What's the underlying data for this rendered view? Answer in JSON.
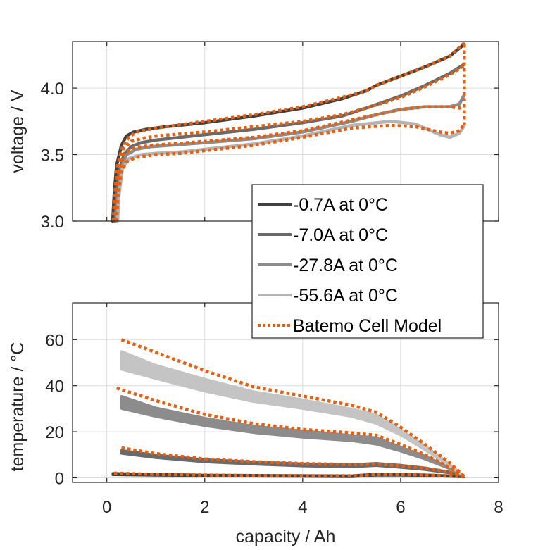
{
  "chart_data": [
    {
      "type": "line",
      "panel": "top",
      "title": "",
      "xlabel": "",
      "ylabel": "voltage / V",
      "xlim": [
        -0.7,
        8.0
      ],
      "ylim": [
        3.0,
        4.35
      ],
      "xticks": [
        0,
        2,
        4,
        6,
        8
      ],
      "xtick_labels_shown": false,
      "yticks": [
        3.0,
        3.5,
        4.0
      ],
      "ytick_labels": [
        "3.0",
        "3.5",
        "4.0"
      ],
      "grid": true,
      "series": [
        {
          "name": "-0.7A at 0°C",
          "kind": "measurement",
          "color": "#404040",
          "x": [
            0.12,
            0.15,
            0.2,
            0.3,
            0.4,
            0.55,
            0.8,
            1.2,
            2.0,
            3.0,
            4.0,
            4.8,
            5.3,
            5.5,
            6.0,
            6.5,
            7.0,
            7.3
          ],
          "y": [
            3.0,
            3.2,
            3.42,
            3.57,
            3.64,
            3.67,
            3.69,
            3.71,
            3.74,
            3.79,
            3.85,
            3.92,
            3.98,
            4.02,
            4.09,
            4.16,
            4.24,
            4.33
          ]
        },
        {
          "name": "-7.0A at 0°C",
          "kind": "measurement",
          "color": "#6a6a6a",
          "x": [
            0.17,
            0.2,
            0.25,
            0.35,
            0.5,
            0.7,
            1.0,
            1.5,
            2.0,
            3.0,
            4.0,
            4.8,
            5.3,
            6.0,
            6.5,
            7.0,
            7.3
          ],
          "y": [
            3.0,
            3.2,
            3.38,
            3.5,
            3.56,
            3.59,
            3.61,
            3.63,
            3.65,
            3.69,
            3.74,
            3.79,
            3.85,
            3.94,
            4.02,
            4.11,
            4.18
          ]
        },
        {
          "name": "-27.8A at 0°C",
          "kind": "measurement",
          "color": "#8c8c8c",
          "x": [
            0.2,
            0.23,
            0.3,
            0.4,
            0.6,
            0.9,
            1.3,
            2.0,
            3.0,
            4.0,
            5.0,
            5.5,
            6.0,
            6.5,
            7.0,
            7.2,
            7.3
          ],
          "y": [
            3.0,
            3.2,
            3.4,
            3.5,
            3.54,
            3.56,
            3.57,
            3.59,
            3.62,
            3.67,
            3.75,
            3.8,
            3.84,
            3.86,
            3.86,
            3.88,
            3.95
          ]
        },
        {
          "name": "-55.6A at 0°C",
          "kind": "measurement",
          "color": "#b4b4b4",
          "x": [
            0.22,
            0.25,
            0.32,
            0.45,
            0.7,
            1.0,
            1.5,
            2.0,
            3.0,
            4.0,
            5.0,
            5.8,
            6.3,
            6.8,
            7.0,
            7.2,
            7.3
          ],
          "y": [
            3.0,
            3.2,
            3.4,
            3.47,
            3.5,
            3.51,
            3.52,
            3.54,
            3.58,
            3.64,
            3.72,
            3.75,
            3.73,
            3.65,
            3.63,
            3.66,
            3.72
          ]
        },
        {
          "name": "Batemo Cell Model",
          "kind": "model",
          "color": "#e8600f",
          "ref": "-0.7A at 0°C",
          "x": [
            0.13,
            0.16,
            0.22,
            0.32,
            0.45,
            0.6,
            1.0,
            2.0,
            3.0,
            4.0,
            4.8,
            5.3,
            5.5,
            6.0,
            6.5,
            7.0,
            7.3
          ],
          "y": [
            3.0,
            3.2,
            3.42,
            3.56,
            3.63,
            3.67,
            3.7,
            3.75,
            3.8,
            3.86,
            3.93,
            3.98,
            4.02,
            4.09,
            4.16,
            4.24,
            4.34
          ]
        },
        {
          "name": "Batemo Cell Model",
          "kind": "model",
          "color": "#e8600f",
          "ref": "-7.0A at 0°C",
          "x": [
            0.15,
            0.18,
            0.24,
            0.33,
            0.5,
            0.7,
            1.0,
            2.0,
            3.0,
            4.0,
            4.8,
            5.3,
            6.0,
            6.5,
            7.0,
            7.3
          ],
          "y": [
            3.0,
            3.2,
            3.4,
            3.54,
            3.6,
            3.62,
            3.64,
            3.67,
            3.71,
            3.75,
            3.8,
            3.85,
            3.93,
            4.01,
            4.1,
            4.17
          ]
        },
        {
          "name": "Batemo Cell Model",
          "kind": "model",
          "color": "#e8600f",
          "ref": "-27.8A at 0°C",
          "x": [
            0.18,
            0.21,
            0.27,
            0.36,
            0.55,
            0.9,
            1.3,
            2.0,
            3.0,
            4.0,
            5.0,
            5.5,
            6.0,
            6.5,
            7.0,
            7.2,
            7.3
          ],
          "y": [
            3.0,
            3.2,
            3.4,
            3.51,
            3.55,
            3.57,
            3.58,
            3.6,
            3.63,
            3.68,
            3.76,
            3.8,
            3.84,
            3.86,
            3.86,
            3.85,
            3.87
          ]
        },
        {
          "name": "Batemo Cell Model",
          "kind": "model",
          "color": "#e8600f",
          "ref": "-55.6A at 0°C",
          "x": [
            0.2,
            0.23,
            0.3,
            0.42,
            0.6,
            1.0,
            1.5,
            2.0,
            3.0,
            4.0,
            5.0,
            5.8,
            6.3,
            6.8,
            7.0,
            7.2,
            7.3
          ],
          "y": [
            3.0,
            3.2,
            3.38,
            3.45,
            3.48,
            3.5,
            3.51,
            3.53,
            3.57,
            3.63,
            3.7,
            3.72,
            3.71,
            3.67,
            3.66,
            3.68,
            3.73
          ]
        },
        {
          "name": "Batemo Cell Model",
          "kind": "model-end",
          "color": "#e8600f",
          "ref": "end-of-discharge",
          "x": [
            7.3,
            7.3
          ],
          "y": [
            3.72,
            4.34
          ]
        }
      ]
    },
    {
      "type": "line",
      "panel": "bottom",
      "title": "",
      "xlabel": "capacity / Ah",
      "ylabel": "temperature / °C",
      "xlim": [
        -0.7,
        8.0
      ],
      "ylim": [
        -2,
        76
      ],
      "xticks": [
        0,
        2,
        4,
        6,
        8
      ],
      "xtick_labels": [
        "0",
        "2",
        "4",
        "6",
        "8"
      ],
      "yticks": [
        0,
        20,
        40,
        60
      ],
      "ytick_labels": [
        "0",
        "20",
        "40",
        "60"
      ],
      "grid": true,
      "series": [
        {
          "name": "-0.7A at 0°C",
          "kind": "measurement-band",
          "color": "#404040",
          "x": [
            0.12,
            1.0,
            2.0,
            3.0,
            4.0,
            5.0,
            5.5,
            6.0,
            6.5,
            7.0,
            7.3
          ],
          "y_upper": [
            2.0,
            1.6,
            1.3,
            1.2,
            1.1,
            1.0,
            1.8,
            1.6,
            1.4,
            1.0,
            0.5
          ],
          "y_lower": [
            1.2,
            1.0,
            0.8,
            0.6,
            0.5,
            0.4,
            1.0,
            1.0,
            0.8,
            0.5,
            0.3
          ]
        },
        {
          "name": "-7.0A at 0°C",
          "kind": "measurement-band",
          "color": "#6a6a6a",
          "x": [
            0.3,
            1.0,
            2.0,
            3.0,
            4.0,
            5.0,
            5.5,
            6.0,
            6.5,
            7.0,
            7.3
          ],
          "y_upper": [
            12.0,
            10.0,
            8.0,
            7.0,
            6.2,
            5.8,
            6.4,
            5.6,
            4.4,
            2.6,
            0.8
          ],
          "y_lower": [
            10.5,
            8.6,
            6.8,
            5.8,
            5.0,
            4.6,
            5.2,
            4.4,
            3.4,
            2.0,
            0.6
          ]
        },
        {
          "name": "-27.8A at 0°C",
          "kind": "measurement-band",
          "color": "#8c8c8c",
          "x": [
            0.3,
            1.0,
            2.0,
            3.0,
            4.0,
            5.0,
            5.5,
            6.0,
            6.5,
            7.0,
            7.3
          ],
          "y_upper": [
            35.5,
            30.5,
            26.0,
            22.5,
            20.5,
            18.5,
            17.5,
            13.5,
            9.5,
            4.5,
            0.8
          ],
          "y_lower": [
            30.0,
            26.5,
            22.5,
            19.5,
            17.5,
            16.0,
            14.5,
            11.5,
            8.0,
            3.8,
            0.6
          ]
        },
        {
          "name": "-55.6A at 0°C",
          "kind": "measurement-band",
          "color": "#c4c4c4",
          "x": [
            0.3,
            1.0,
            2.0,
            3.0,
            4.0,
            5.0,
            5.5,
            6.0,
            6.5,
            7.0,
            7.3
          ],
          "y_upper": [
            55.0,
            49.0,
            43.0,
            37.5,
            34.0,
            30.0,
            27.5,
            21.0,
            14.0,
            6.0,
            0.8
          ],
          "y_lower": [
            47.0,
            43.0,
            37.5,
            33.0,
            30.0,
            26.5,
            23.5,
            18.5,
            12.0,
            5.0,
            0.6
          ]
        },
        {
          "name": "Batemo Cell Model",
          "kind": "model",
          "color": "#e8600f",
          "ref": "-0.7A at 0°C",
          "x": [
            0.15,
            1.0,
            2.0,
            3.0,
            4.0,
            5.0,
            5.5,
            6.0,
            6.5,
            7.0,
            7.3
          ],
          "y": [
            2.0,
            1.5,
            1.2,
            1.0,
            0.9,
            0.9,
            1.4,
            1.4,
            1.2,
            0.9,
            0.6
          ]
        },
        {
          "name": "Batemo Cell Model",
          "kind": "model",
          "color": "#e8600f",
          "ref": "-7.0A at 0°C",
          "x": [
            0.3,
            1.0,
            2.0,
            3.0,
            4.0,
            5.0,
            5.5,
            6.0,
            6.5,
            7.0,
            7.3
          ],
          "y": [
            13.0,
            10.5,
            8.2,
            7.0,
            6.2,
            5.8,
            6.0,
            5.2,
            4.2,
            2.5,
            0.8
          ]
        },
        {
          "name": "Batemo Cell Model",
          "kind": "model",
          "color": "#e8600f",
          "ref": "-27.8A at 0°C",
          "x": [
            0.2,
            1.0,
            2.0,
            3.0,
            4.0,
            5.0,
            5.5,
            6.0,
            6.5,
            7.0,
            7.3
          ],
          "y": [
            39.0,
            33.5,
            27.5,
            23.5,
            21.0,
            19.5,
            18.5,
            14.5,
            10.0,
            4.5,
            0.6
          ]
        },
        {
          "name": "Batemo Cell Model",
          "kind": "model",
          "color": "#e8600f",
          "ref": "-55.6A at 0°C",
          "x": [
            0.3,
            1.0,
            2.0,
            3.0,
            4.0,
            5.0,
            5.5,
            6.0,
            6.5,
            7.0,
            7.3
          ],
          "y": [
            60.0,
            54.5,
            46.5,
            39.5,
            35.5,
            31.5,
            28.5,
            22.0,
            14.5,
            6.5,
            0.6
          ]
        }
      ]
    }
  ],
  "legend": {
    "placement": "top-panel bottom-right, overlapping both panels",
    "entries": [
      {
        "label": "-0.7A at 0°C",
        "color": "#404040",
        "style": "solid"
      },
      {
        "label": "-7.0A at 0°C",
        "color": "#6a6a6a",
        "style": "solid"
      },
      {
        "label": "-27.8A at 0°C",
        "color": "#8c8c8c",
        "style": "solid"
      },
      {
        "label": "-55.6A at 0°C",
        "color": "#b4b4b4",
        "style": "solid"
      },
      {
        "label": "Batemo Cell Model",
        "color": "#e8600f",
        "style": "dotted"
      }
    ]
  },
  "colors": {
    "model": "#e8600f",
    "axis": "#262626",
    "grid": "#dcdcdc"
  }
}
